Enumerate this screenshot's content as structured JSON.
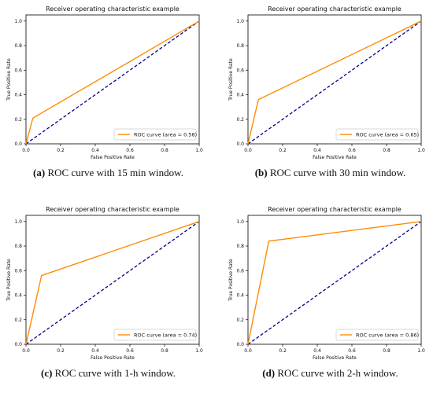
{
  "colors": {
    "roc": "#ff8c00",
    "chance": "#00008b",
    "axis": "#000000"
  },
  "chart_data": [
    {
      "type": "line",
      "title": "Receiver operating characteristic example",
      "xlabel": "False Positive Rate",
      "ylabel": "True Positive Rate",
      "xlim": [
        0,
        1
      ],
      "ylim": [
        0,
        1.05
      ],
      "xticks": [
        "0.0",
        "0.2",
        "0.4",
        "0.6",
        "0.8",
        "1.0"
      ],
      "yticks": [
        "0.0",
        "0.2",
        "0.4",
        "0.6",
        "0.8",
        "1.0"
      ],
      "legend_position": "lower-right",
      "series": [
        {
          "name": "ROC curve (area = 0.58)",
          "x": [
            0,
            0.04,
            1
          ],
          "y": [
            0,
            0.21,
            1
          ],
          "style": "solid",
          "color_key": "roc"
        },
        {
          "x": [
            0,
            1
          ],
          "y": [
            0,
            1
          ],
          "style": "dashed",
          "color_key": "chance"
        }
      ],
      "caption": {
        "label": "(a)",
        "text": " ROC curve with 15 min window."
      }
    },
    {
      "type": "line",
      "title": "Receiver operating characteristic example",
      "xlabel": "False Positive Rate",
      "ylabel": "True Positive Rate",
      "xlim": [
        0,
        1
      ],
      "ylim": [
        0,
        1.05
      ],
      "xticks": [
        "0.0",
        "0.2",
        "0.4",
        "0.6",
        "0.8",
        "1.0"
      ],
      "yticks": [
        "0.0",
        "0.2",
        "0.4",
        "0.6",
        "0.8",
        "1.0"
      ],
      "legend_position": "lower-right",
      "series": [
        {
          "name": "ROC curve (area = 0.65)",
          "x": [
            0,
            0.06,
            1
          ],
          "y": [
            0,
            0.36,
            1
          ],
          "style": "solid",
          "color_key": "roc"
        },
        {
          "x": [
            0,
            1
          ],
          "y": [
            0,
            1
          ],
          "style": "dashed",
          "color_key": "chance"
        }
      ],
      "caption": {
        "label": "(b)",
        "text": " ROC curve with 30 min window."
      }
    },
    {
      "type": "line",
      "title": "Receiver operating characteristic example",
      "xlabel": "False Positive Rate",
      "ylabel": "True Positive Rate",
      "xlim": [
        0,
        1
      ],
      "ylim": [
        0,
        1.05
      ],
      "xticks": [
        "0.0",
        "0.2",
        "0.4",
        "0.6",
        "0.8",
        "1.0"
      ],
      "yticks": [
        "0.0",
        "0.2",
        "0.4",
        "0.6",
        "0.8",
        "1.0"
      ],
      "legend_position": "lower-right",
      "series": [
        {
          "name": "ROC curve (area = 0.74)",
          "x": [
            0,
            0.09,
            1
          ],
          "y": [
            0,
            0.56,
            1
          ],
          "style": "solid",
          "color_key": "roc"
        },
        {
          "x": [
            0,
            1
          ],
          "y": [
            0,
            1
          ],
          "style": "dashed",
          "color_key": "chance"
        }
      ],
      "caption": {
        "label": "(c)",
        "text": " ROC curve with 1-h window."
      }
    },
    {
      "type": "line",
      "title": "Receiver operating characteristic example",
      "xlabel": "False Positive Rate",
      "ylabel": "True Positive Rate",
      "xlim": [
        0,
        1
      ],
      "ylim": [
        0,
        1.05
      ],
      "xticks": [
        "0.0",
        "0.2",
        "0.4",
        "0.6",
        "0.8",
        "1.0"
      ],
      "yticks": [
        "0.0",
        "0.2",
        "0.4",
        "0.6",
        "0.8",
        "1.0"
      ],
      "legend_position": "lower-right",
      "series": [
        {
          "name": "ROC curve (area = 0.86)",
          "x": [
            0,
            0.12,
            1
          ],
          "y": [
            0,
            0.84,
            1
          ],
          "style": "solid",
          "color_key": "roc"
        },
        {
          "x": [
            0,
            1
          ],
          "y": [
            0,
            1
          ],
          "style": "dashed",
          "color_key": "chance"
        }
      ],
      "caption": {
        "label": "(d)",
        "text": " ROC curve with 2-h window."
      }
    }
  ]
}
